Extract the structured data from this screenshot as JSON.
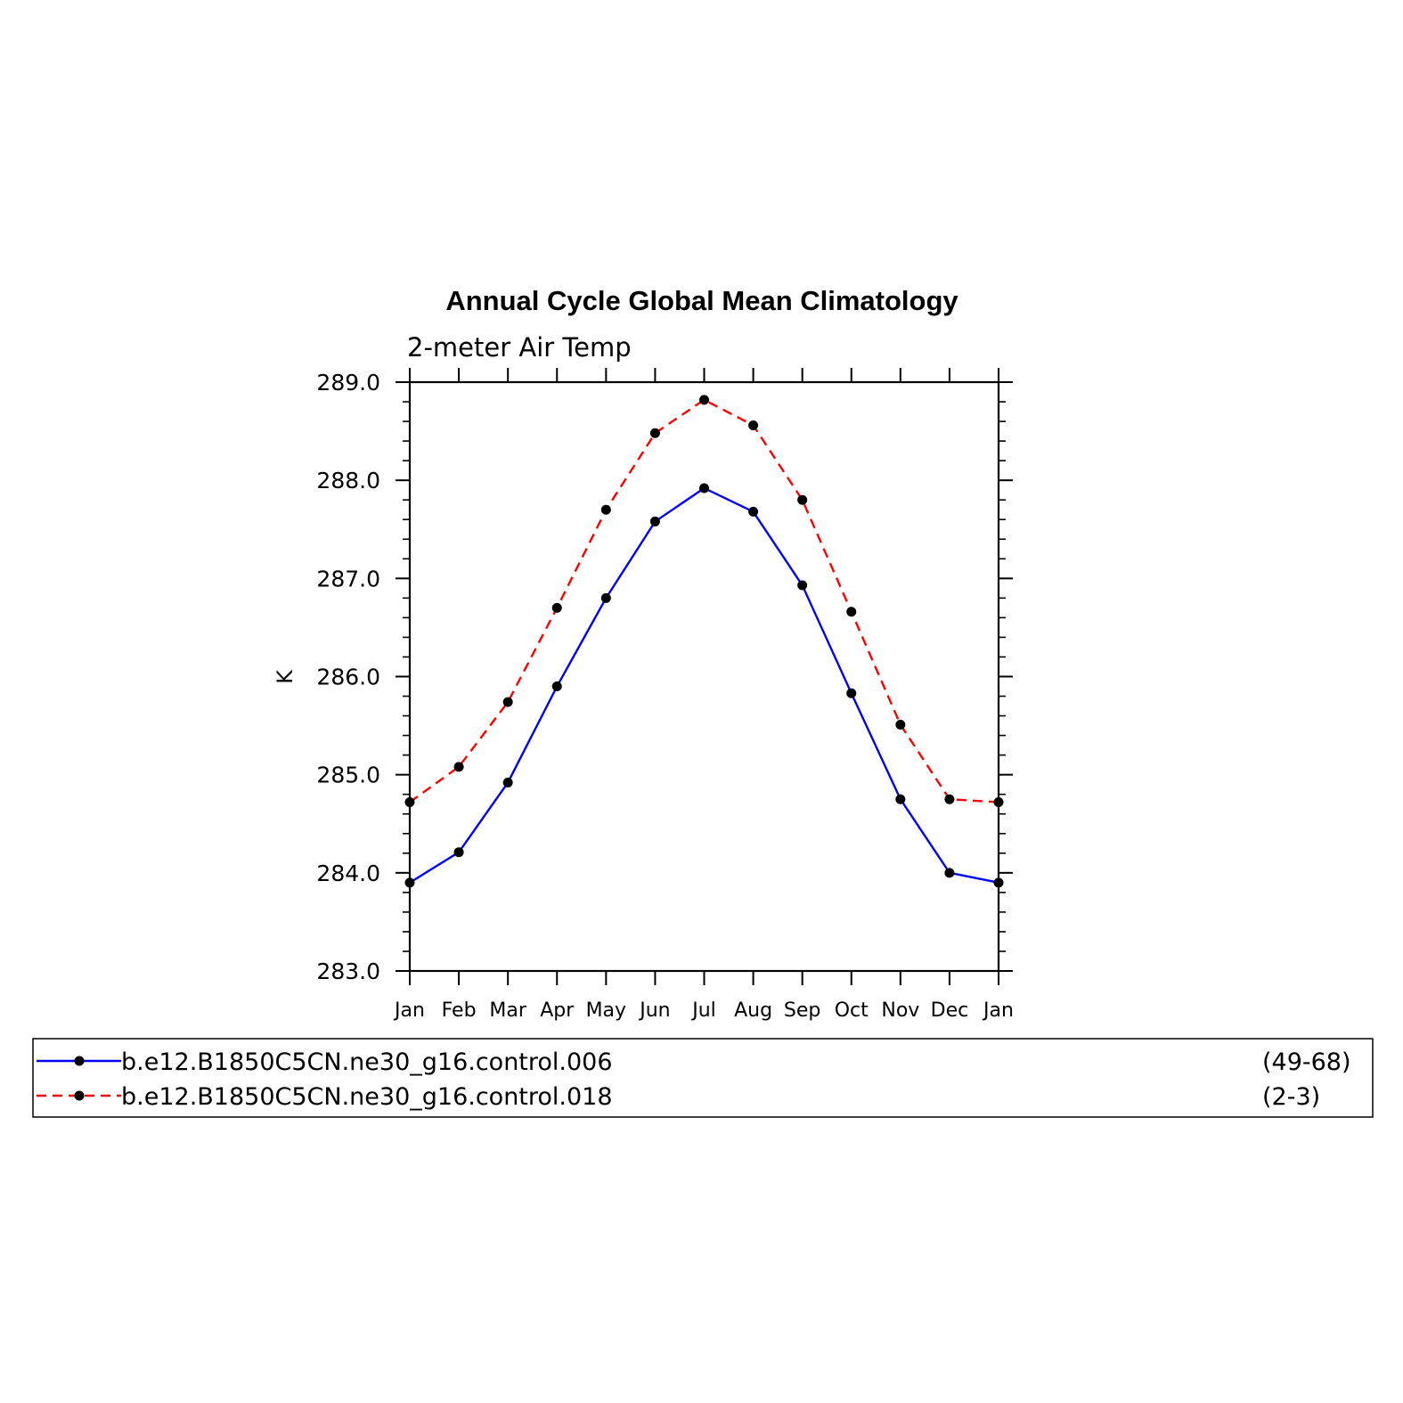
{
  "chart_data": {
    "type": "line",
    "title": "Annual Cycle Global Mean Climatology",
    "subtitle": "2-meter Air Temp",
    "xlabel": "",
    "ylabel": "K",
    "categories": [
      "Jan",
      "Feb",
      "Mar",
      "Apr",
      "May",
      "Jun",
      "Jul",
      "Aug",
      "Sep",
      "Oct",
      "Nov",
      "Dec",
      "Jan"
    ],
    "ylim": [
      283.0,
      289.0
    ],
    "yticks": [
      "283.0",
      "284.0",
      "285.0",
      "286.0",
      "287.0",
      "288.0",
      "289.0"
    ],
    "grid": false,
    "legend_position": "bottom",
    "series": [
      {
        "name": "b.e12.B1850C5CN.ne30_g16.control.006",
        "years": "(49-68)",
        "color": "#0000ff",
        "dash": "solid",
        "values": [
          283.9,
          284.21,
          284.92,
          285.9,
          286.8,
          287.58,
          287.92,
          287.68,
          286.93,
          285.83,
          284.75,
          284.0,
          283.9
        ]
      },
      {
        "name": "b.e12.B1850C5CN.ne30_g16.control.018",
        "years": "(2-3)",
        "color": "#ff0000",
        "dash": "dashed",
        "values": [
          284.72,
          285.08,
          285.74,
          286.7,
          287.7,
          288.48,
          288.82,
          288.56,
          287.8,
          286.66,
          285.51,
          284.75,
          284.72
        ]
      }
    ]
  }
}
